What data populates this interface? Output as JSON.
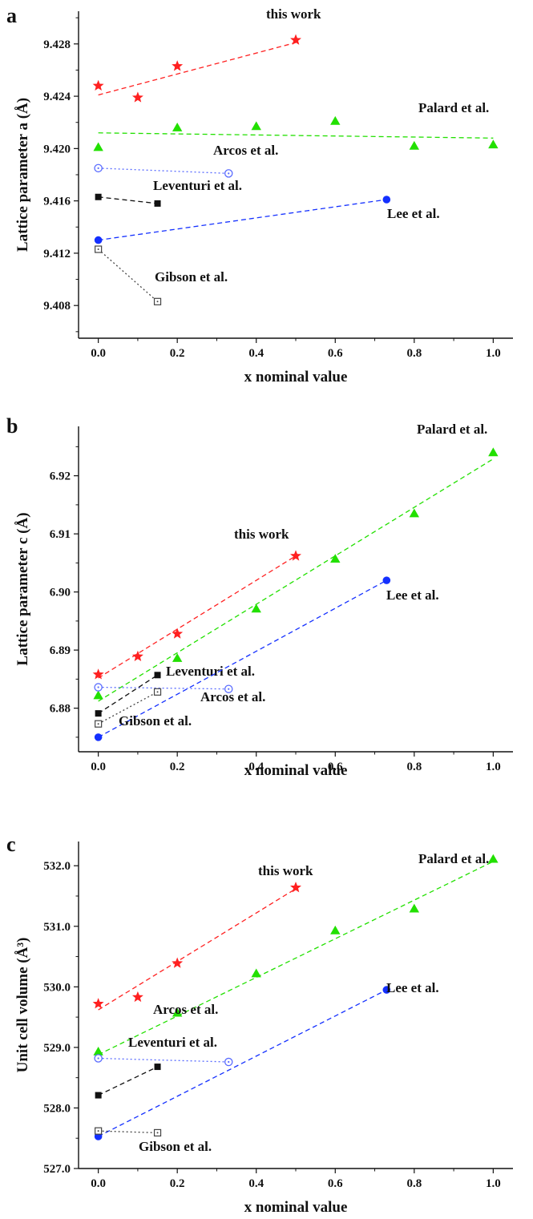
{
  "chart_data": [
    {
      "type": "scatter",
      "panel": "a",
      "xlabel": "x nominal  value",
      "ylabel": "Lattice parameter a (Å)",
      "xlim": [
        -0.05,
        1.05
      ],
      "ylim": [
        9.4055,
        9.4305
      ],
      "xticks": [
        0.0,
        0.2,
        0.4,
        0.6,
        0.8,
        1.0
      ],
      "xtick_labels": [
        "0.0",
        "0.2",
        "0.4",
        "0.6",
        "0.8",
        "1.0"
      ],
      "yticks": [
        9.408,
        9.412,
        9.416,
        9.42,
        9.424,
        9.428
      ],
      "ytick_labels": [
        "9.408",
        "9.412",
        "9.416",
        "9.420",
        "9.424",
        "9.428"
      ],
      "series": [
        {
          "name": "this work",
          "color": "#ff2020",
          "marker": "star",
          "line": "dashed",
          "x": [
            0.0,
            0.1,
            0.2,
            0.5
          ],
          "y": [
            9.4248,
            9.4239,
            9.4263,
            9.4283
          ],
          "fit": [
            [
              0.0,
              9.4241
            ],
            [
              0.5,
              9.4281
            ]
          ]
        },
        {
          "name": "Palard et al.",
          "color": "#22e000",
          "marker": "triangle",
          "line": "dashed",
          "x": [
            0.0,
            0.2,
            0.4,
            0.6,
            0.8,
            1.0
          ],
          "y": [
            9.4201,
            9.4216,
            9.4217,
            9.4221,
            9.4202,
            9.4203
          ],
          "fit": [
            [
              0.0,
              9.4212
            ],
            [
              1.0,
              9.4208
            ]
          ]
        },
        {
          "name": "Arcos et al.",
          "color": "#5a6cff",
          "marker": "circle-dot-open",
          "line": "dotted",
          "x": [
            0.0,
            0.33
          ],
          "y": [
            9.4185,
            9.4181
          ],
          "fit": [
            [
              0.0,
              9.4185
            ],
            [
              0.33,
              9.4181
            ]
          ]
        },
        {
          "name": "Leventuri et al.",
          "color": "#111111",
          "marker": "square",
          "line": "dashed",
          "x": [
            0.0,
            0.15
          ],
          "y": [
            9.4163,
            9.4158
          ],
          "fit": [
            [
              0.0,
              9.4163
            ],
            [
              0.15,
              9.4158
            ]
          ]
        },
        {
          "name": "Lee et al.",
          "color": "#1430ff",
          "marker": "circle",
          "line": "dashed",
          "x": [
            0.0,
            0.73
          ],
          "y": [
            9.413,
            9.4161
          ],
          "fit": [
            [
              0.0,
              9.413
            ],
            [
              0.73,
              9.4161
            ]
          ]
        },
        {
          "name": "Gibson et al.",
          "color": "#444444",
          "marker": "square-dot-open",
          "line": "dotted",
          "x": [
            0.0,
            0.15
          ],
          "y": [
            9.4123,
            9.4083
          ],
          "fit": [
            [
              0.0,
              9.4123
            ],
            [
              0.15,
              9.4083
            ]
          ]
        }
      ]
    },
    {
      "type": "scatter",
      "panel": "b",
      "xlabel": "x nominal  value",
      "ylabel": "Lattice parameter c (Å)",
      "xlim": [
        -0.05,
        1.05
      ],
      "ylim": [
        6.8725,
        6.9285
      ],
      "xticks": [
        0.0,
        0.2,
        0.4,
        0.6,
        0.8,
        1.0
      ],
      "xtick_labels": [
        "0.0",
        "0.2",
        "0.4",
        "0.6",
        "0.8",
        "1.0"
      ],
      "yticks": [
        6.88,
        6.89,
        6.9,
        6.91,
        6.92
      ],
      "ytick_labels": [
        "6.88",
        "6.89",
        "6.90",
        "6.91",
        "6.92"
      ],
      "series": [
        {
          "name": "this work",
          "color": "#ff2020",
          "marker": "star",
          "line": "dashed",
          "x": [
            0.0,
            0.1,
            0.2,
            0.5
          ],
          "y": [
            6.8858,
            6.8889,
            6.8928,
            6.9062
          ],
          "fit": [
            [
              0.0,
              6.8852
            ],
            [
              0.5,
              6.9062
            ]
          ]
        },
        {
          "name": "Palard et al.",
          "color": "#22e000",
          "marker": "triangle",
          "line": "dashed",
          "x": [
            0.0,
            0.2,
            0.4,
            0.6,
            0.8,
            1.0
          ],
          "y": [
            6.8822,
            6.8886,
            6.8971,
            6.9057,
            6.9135,
            6.924
          ],
          "fit": [
            [
              0.0,
              6.8812
            ],
            [
              1.0,
              6.9229
            ]
          ]
        },
        {
          "name": "Arcos et al.",
          "color": "#5a6cff",
          "marker": "circle-dot-open",
          "line": "dotted",
          "x": [
            0.0,
            0.33
          ],
          "y": [
            6.8836,
            6.8833
          ],
          "fit": [
            [
              0.0,
              6.8836
            ],
            [
              0.33,
              6.8833
            ]
          ]
        },
        {
          "name": "Leventuri et al.",
          "color": "#111111",
          "marker": "square",
          "line": "dashed",
          "x": [
            0.0,
            0.15
          ],
          "y": [
            6.8791,
            6.8857
          ],
          "fit": [
            [
              0.0,
              6.8791
            ],
            [
              0.15,
              6.8857
            ]
          ]
        },
        {
          "name": "Lee et al.",
          "color": "#1430ff",
          "marker": "circle",
          "line": "dashed",
          "x": [
            0.0,
            0.73
          ],
          "y": [
            6.875,
            6.902
          ],
          "fit": [
            [
              0.0,
              6.875
            ],
            [
              0.73,
              6.902
            ]
          ]
        },
        {
          "name": "Gibson et al.",
          "color": "#444444",
          "marker": "square-dot-open",
          "line": "dotted",
          "x": [
            0.0,
            0.15
          ],
          "y": [
            6.8773,
            6.8828
          ],
          "fit": [
            [
              0.0,
              6.8773
            ],
            [
              0.15,
              6.8828
            ]
          ]
        }
      ]
    },
    {
      "type": "scatter",
      "panel": "c",
      "xlabel": "x nominal  value",
      "ylabel": "Unit cell volume (Å³)",
      "xlim": [
        -0.05,
        1.05
      ],
      "ylim": [
        527.0,
        532.4
      ],
      "xticks": [
        0.0,
        0.2,
        0.4,
        0.6,
        0.8,
        1.0
      ],
      "xtick_labels": [
        "0.0",
        "0.2",
        "0.4",
        "0.6",
        "0.8",
        "1.0"
      ],
      "yticks": [
        527.0,
        528.0,
        529.0,
        530.0,
        531.0,
        532.0
      ],
      "ytick_labels": [
        "527.0",
        "528.0",
        "529.0",
        "530.0",
        "531.0",
        "532.0"
      ],
      "series": [
        {
          "name": "this work",
          "color": "#ff2020",
          "marker": "star",
          "line": "dashed",
          "x": [
            0.0,
            0.1,
            0.2,
            0.5
          ],
          "y": [
            529.72,
            529.83,
            530.39,
            531.64
          ],
          "fit": [
            [
              0.0,
              529.62
            ],
            [
              0.5,
              531.62
            ]
          ]
        },
        {
          "name": "Palard et al.",
          "color": "#22e000",
          "marker": "triangle",
          "line": "dashed",
          "x": [
            0.0,
            0.2,
            0.4,
            0.6,
            0.8,
            1.0
          ],
          "y": [
            528.93,
            529.57,
            530.22,
            530.93,
            531.29,
            532.11
          ],
          "fit": [
            [
              0.0,
              528.88
            ],
            [
              1.0,
              532.07
            ]
          ]
        },
        {
          "name": "Arcos et al.",
          "color": "#5a6cff",
          "marker": "circle-dot-open",
          "line": "dotted",
          "x": [
            0.0,
            0.33
          ],
          "y": [
            528.82,
            528.76
          ],
          "fit": [
            [
              0.0,
              528.82
            ],
            [
              0.33,
              528.76
            ]
          ]
        },
        {
          "name": "Leventuri et al.",
          "color": "#111111",
          "marker": "square",
          "line": "dashed",
          "x": [
            0.0,
            0.15
          ],
          "y": [
            528.21,
            528.68
          ],
          "fit": [
            [
              0.0,
              528.21
            ],
            [
              0.15,
              528.68
            ]
          ]
        },
        {
          "name": "Lee et al.",
          "color": "#1430ff",
          "marker": "circle",
          "line": "dashed",
          "x": [
            0.0,
            0.73
          ],
          "y": [
            527.53,
            529.95
          ],
          "fit": [
            [
              0.0,
              527.53
            ],
            [
              0.73,
              529.95
            ]
          ]
        },
        {
          "name": "Gibson et al.",
          "color": "#444444",
          "marker": "square-dot-open",
          "line": "dotted",
          "x": [
            0.0,
            0.15
          ],
          "y": [
            527.62,
            527.59
          ],
          "fit": [
            [
              0.0,
              527.62
            ],
            [
              0.15,
              527.59
            ]
          ]
        }
      ]
    }
  ]
}
